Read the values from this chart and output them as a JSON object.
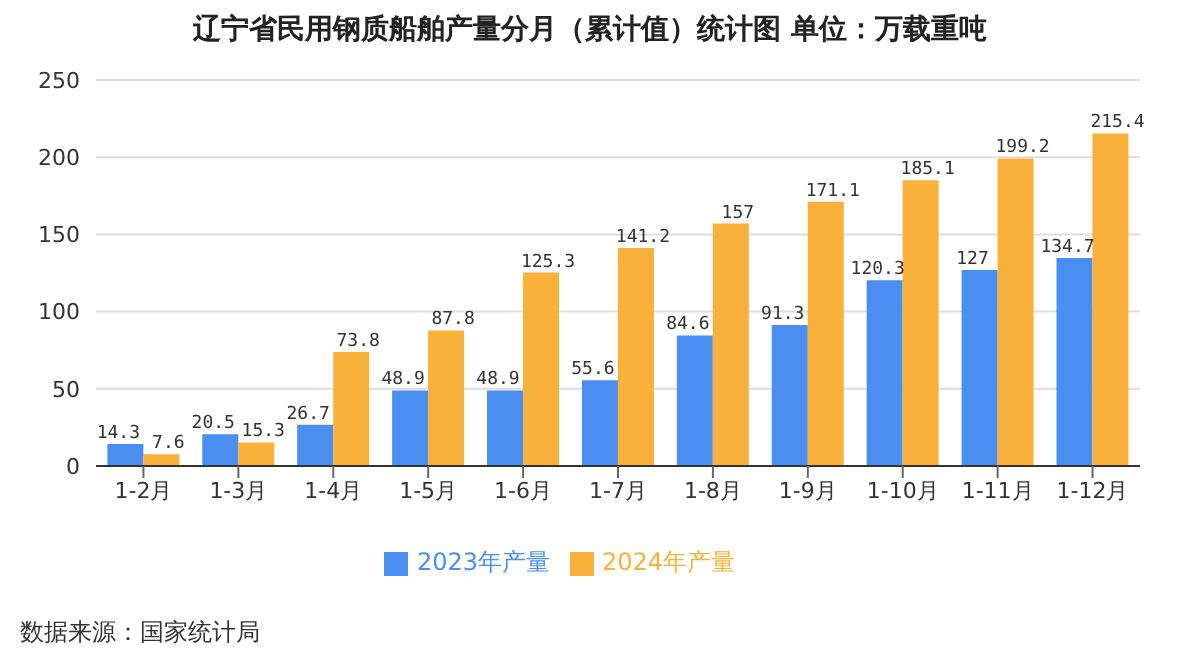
{
  "chart_data": {
    "type": "bar",
    "title": "辽宁省民用钢质船舶产量分月（累计值）统计图 单位：万载重吨",
    "categories": [
      "1-2月",
      "1-3月",
      "1-4月",
      "1-5月",
      "1-6月",
      "1-7月",
      "1-8月",
      "1-9月",
      "1-10月",
      "1-11月",
      "1-12月"
    ],
    "series": [
      {
        "name": "2023年产量",
        "color": "#4a8ef0",
        "values": [
          14.3,
          20.5,
          26.7,
          48.9,
          48.9,
          55.6,
          84.6,
          91.3,
          120.3,
          127,
          134.7
        ]
      },
      {
        "name": "2024年产量",
        "color": "#f9b13b",
        "values": [
          7.6,
          15.3,
          73.8,
          87.8,
          125.3,
          141.2,
          157,
          171.1,
          185.1,
          199.2,
          215.4
        ]
      }
    ],
    "ylim": [
      0,
      250
    ],
    "yticks": [
      0,
      50,
      100,
      150,
      200,
      250
    ],
    "grid": "y",
    "legend": "bottom",
    "data_labels": true,
    "annotations": [
      "数据来源：国家统计局"
    ]
  }
}
